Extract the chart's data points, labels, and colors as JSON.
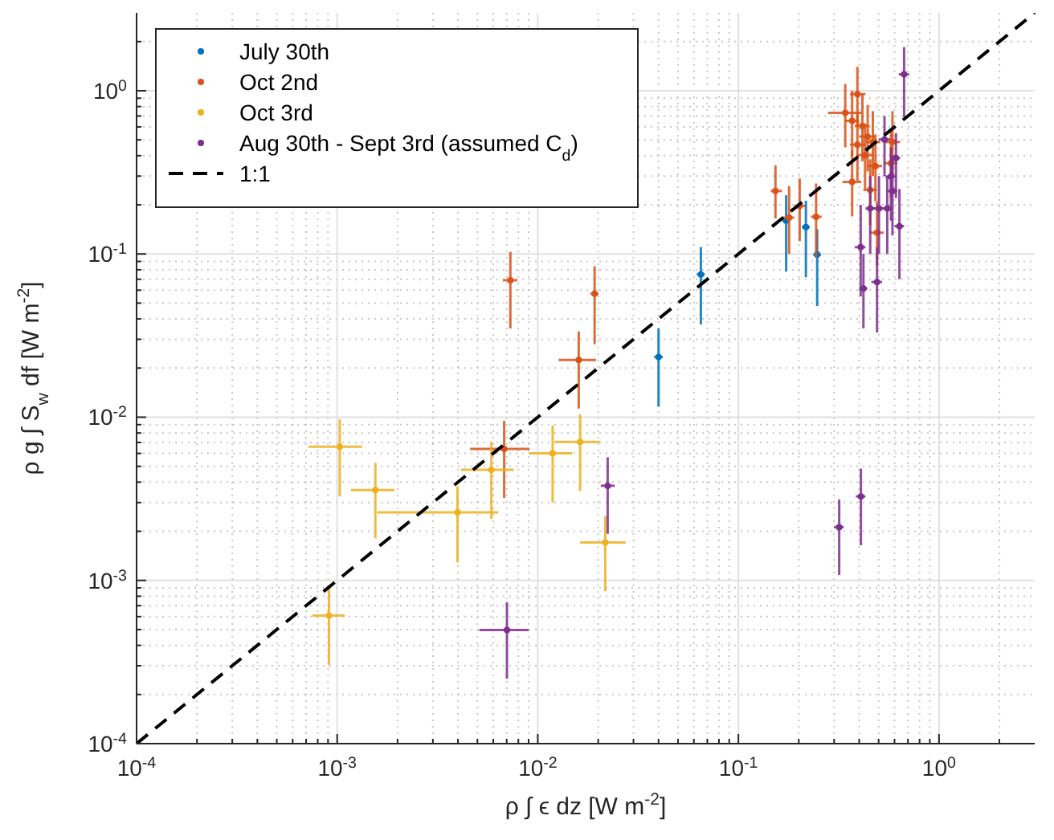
{
  "chart_data": {
    "type": "scatter",
    "xlabel": "ρ ∫ ϵ dz [W m$^{-2}$]",
    "ylabel": "ρ g ∫ S$_{w}$ df [W m$^{-2}$]",
    "log": "xy",
    "grid": true,
    "legend": "top left",
    "marker": "circle",
    "xlim": [
      0.0001,
      3
    ],
    "ylim": [
      0.0001,
      3
    ],
    "xticks": [
      {
        "value": 0.0001,
        "label": "10$^{-4}$"
      },
      {
        "value": 0.001,
        "label": "10$^{-3}$"
      },
      {
        "value": 0.01,
        "label": "10$^{-2}$"
      },
      {
        "value": 0.1,
        "label": "10$^{-1}$"
      },
      {
        "value": 1,
        "label": "10$^{0}$"
      }
    ],
    "yticks": [
      {
        "value": 0.0001,
        "label": "10$^{-4}$"
      },
      {
        "value": 0.001,
        "label": "10$^{-3}$"
      },
      {
        "value": 0.01,
        "label": "10$^{-2}$"
      },
      {
        "value": 0.1,
        "label": "10$^{-1}$"
      },
      {
        "value": 1,
        "label": "10$^{0}$"
      }
    ],
    "series": [
      {
        "name": "July 30th",
        "color": "#0072bd",
        "x": [
          0.065,
          0.04,
          0.173,
          0.217,
          0.247
        ],
        "values": [
          0.075,
          0.0234,
          0.16,
          0.146,
          0.099
        ],
        "xerrors": [
          [
            0.062,
            0.068
          ],
          [
            0.038,
            0.042
          ],
          [
            0.165,
            0.181
          ],
          [
            0.207,
            0.227
          ],
          [
            0.236,
            0.258
          ]
        ],
        "errors": [
          [
            0.037,
            0.11
          ],
          [
            0.0116,
            0.035
          ],
          [
            0.078,
            0.229
          ],
          [
            0.072,
            0.212
          ],
          [
            0.048,
            0.142
          ]
        ]
      },
      {
        "name": "Oct 2nd",
        "color": "#d95319",
        "x": [
          0.0073,
          0.0192,
          0.016,
          0.0068,
          0.153,
          0.179,
          0.202,
          0.244,
          0.341,
          0.392,
          0.369,
          0.415,
          0.441,
          0.392,
          0.468,
          0.428,
          0.369,
          0.482,
          0.491,
          0.586,
          0.576,
          0.454
        ],
        "values": [
          0.069,
          0.057,
          0.0224,
          0.0064,
          0.243,
          0.167,
          0.197,
          0.169,
          0.733,
          0.953,
          0.654,
          0.608,
          0.523,
          0.467,
          0.485,
          0.403,
          0.276,
          0.346,
          0.135,
          0.485,
          0.36,
          0.247
        ],
        "xerrors": [
          [
            0.0067,
            0.0079
          ],
          [
            0.0183,
            0.0201
          ],
          [
            0.0127,
            0.0195
          ],
          [
            0.0046,
            0.0091
          ],
          [
            0.145,
            0.165
          ],
          [
            0.165,
            0.19
          ],
          [
            0.19,
            0.215
          ],
          [
            0.23,
            0.26
          ],
          [
            0.28,
            0.41
          ],
          [
            0.36,
            0.43
          ],
          [
            0.34,
            0.4
          ],
          [
            0.38,
            0.45
          ],
          [
            0.4,
            0.48
          ],
          [
            0.36,
            0.43
          ],
          [
            0.43,
            0.51
          ],
          [
            0.39,
            0.47
          ],
          [
            0.33,
            0.41
          ],
          [
            0.44,
            0.52
          ],
          [
            0.45,
            0.53
          ],
          [
            0.54,
            0.64
          ],
          [
            0.53,
            0.62
          ],
          [
            0.42,
            0.49
          ]
        ],
        "errors": [
          [
            0.035,
            0.103
          ],
          [
            0.028,
            0.084
          ],
          [
            0.0113,
            0.0335
          ],
          [
            0.0032,
            0.0095
          ],
          [
            0.165,
            0.349
          ],
          [
            0.1,
            0.26
          ],
          [
            0.12,
            0.29
          ],
          [
            0.095,
            0.27
          ],
          [
            0.45,
            1.1
          ],
          [
            0.6,
            1.4
          ],
          [
            0.4,
            1
          ],
          [
            0.37,
            0.95
          ],
          [
            0.32,
            0.82
          ],
          [
            0.28,
            0.73
          ],
          [
            0.3,
            0.75
          ],
          [
            0.25,
            0.63
          ],
          [
            0.17,
            0.43
          ],
          [
            0.21,
            0.54
          ],
          [
            0.085,
            0.21
          ],
          [
            0.3,
            0.75
          ],
          [
            0.22,
            0.56
          ],
          [
            0.15,
            0.38
          ]
        ]
      },
      {
        "name": "Oct 3rd",
        "color": "#edb120",
        "x": [
          0.00103,
          0.00155,
          0.00398,
          0.00587,
          0.01186,
          0.01626,
          0.0217,
          0.00091
        ],
        "values": [
          0.00659,
          0.00358,
          0.00261,
          0.00476,
          0.00601,
          0.00705,
          0.00171,
          0.00061
        ],
        "xerrors": [
          [
            0.00072,
            0.00133
          ],
          [
            0.00117,
            0.00193
          ],
          [
            0.00158,
            0.00635
          ],
          [
            0.00414,
            0.00759
          ],
          [
            0.00906,
            0.01484
          ],
          [
            0.0122,
            0.0204
          ],
          [
            0.01626,
            0.0274
          ],
          [
            0.00075,
            0.00109
          ]
        ],
        "errors": [
          [
            0.00327,
            0.0097
          ],
          [
            0.00181,
            0.00526
          ],
          [
            0.00129,
            0.00377
          ],
          [
            0.00238,
            0.00705
          ],
          [
            0.003,
            0.0089
          ],
          [
            0.00352,
            0.0104
          ],
          [
            0.00086,
            0.00248
          ],
          [
            0.000303,
            0.0009
          ]
        ]
      },
      {
        "name": "Aug 30th - Sept 3rd (assumed C$_{d}$)",
        "color": "#7e2f8e",
        "x": [
          0.00702,
          0.0223,
          0.318,
          0.408,
          0.67,
          0.407,
          0.42,
          0.491,
          0.454,
          0.502,
          0.552,
          0.586,
          0.576,
          0.61,
          0.535,
          0.635
        ],
        "values": [
          0.000497,
          0.0038,
          0.00212,
          0.00327,
          1.26,
          0.11,
          0.0615,
          0.0673,
          0.19,
          0.19,
          0.19,
          0.243,
          0.298,
          0.387,
          0.503,
          0.148
        ],
        "xerrors": [
          [
            0.00511,
            0.009
          ],
          [
            0.0206,
            0.0242
          ],
          [
            0.3,
            0.335
          ],
          [
            0.385,
            0.43
          ],
          [
            0.63,
            0.71
          ],
          [
            0.38,
            0.43
          ],
          [
            0.4,
            0.44
          ],
          [
            0.46,
            0.52
          ],
          [
            0.43,
            0.48
          ],
          [
            0.47,
            0.53
          ],
          [
            0.52,
            0.58
          ],
          [
            0.55,
            0.62
          ],
          [
            0.54,
            0.61
          ],
          [
            0.58,
            0.64
          ],
          [
            0.5,
            0.57
          ],
          [
            0.6,
            0.67
          ]
        ],
        "errors": [
          [
            0.00025,
            0.000735
          ],
          [
            0.00193,
            0.00568
          ],
          [
            0.00108,
            0.00313
          ],
          [
            0.00164,
            0.00484
          ],
          [
            0.69,
            1.85
          ],
          [
            0.055,
            0.2
          ],
          [
            0.035,
            0.1
          ],
          [
            0.033,
            0.11
          ],
          [
            0.1,
            0.3
          ],
          [
            0.1,
            0.3
          ],
          [
            0.1,
            0.3
          ],
          [
            0.13,
            0.4
          ],
          [
            0.16,
            0.45
          ],
          [
            0.22,
            0.55
          ],
          [
            0.3,
            0.7
          ],
          [
            0.07,
            0.25
          ]
        ]
      },
      {
        "name": "1:1",
        "type": "line",
        "color": "#000000",
        "marker": "none",
        "line_style": "dashed",
        "x": [
          0.0001,
          3
        ],
        "values": [
          0.0001,
          3
        ]
      }
    ]
  }
}
